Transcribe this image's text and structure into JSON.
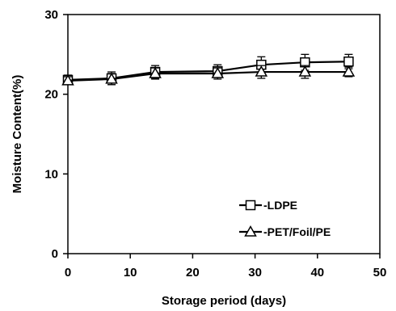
{
  "chart_data": {
    "type": "line",
    "title": "",
    "xlabel": "Storage period (days)",
    "ylabel": "Moisture Content(%)",
    "xlim": [
      0,
      50
    ],
    "ylim": [
      0,
      30
    ],
    "x_ticks": [
      "0",
      "10",
      "20",
      "30",
      "40",
      "50"
    ],
    "y_ticks": [
      "0",
      "10",
      "20",
      "30"
    ],
    "grid": false,
    "legend_position": "lower-right",
    "series": [
      {
        "name": "LDPE",
        "marker": "square",
        "color": "#000000",
        "x": [
          0,
          7,
          14,
          24,
          31,
          38,
          45
        ],
        "y": [
          21.8,
          22.0,
          22.8,
          22.9,
          23.7,
          24.0,
          24.1
        ],
        "error": [
          0.6,
          0.8,
          0.8,
          0.8,
          1.0,
          1.0,
          0.9
        ]
      },
      {
        "name": "PET/Foil/PE",
        "marker": "triangle",
        "color": "#000000",
        "x": [
          0,
          7,
          14,
          24,
          31,
          38,
          45
        ],
        "y": [
          21.7,
          21.9,
          22.6,
          22.6,
          22.8,
          22.8,
          22.8
        ],
        "error": [
          0.5,
          0.7,
          0.7,
          0.7,
          0.8,
          0.8,
          0.6
        ]
      }
    ]
  }
}
